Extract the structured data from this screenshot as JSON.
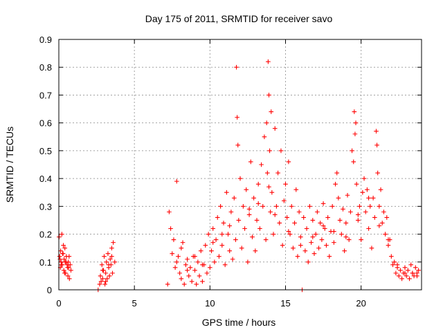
{
  "chart_data": {
    "type": "scatter",
    "title": "Day 175 of 2011, SRMTID for receiver savo",
    "xlabel": "GPS time / hours",
    "ylabel": "SRMTID / TECUs",
    "xlim": [
      0,
      24
    ],
    "ylim": [
      0,
      0.9
    ],
    "xticks": [
      0,
      5,
      10,
      15,
      20
    ],
    "yticks": [
      0,
      0.1,
      0.2,
      0.3,
      0.4,
      0.5,
      0.6,
      0.7,
      0.8,
      0.9
    ],
    "xtick_labels": [
      "0",
      "5",
      "10",
      "15",
      "20"
    ],
    "ytick_labels": [
      "0",
      "0.1",
      "0.2",
      "0.3",
      "0.4",
      "0.5",
      "0.6",
      "0.7",
      "0.8",
      "0.9"
    ],
    "grid": true,
    "marker": "+",
    "marker_color": "#ff0000",
    "series": [
      {
        "name": "SRMTID",
        "x": [
          0.02,
          0.05,
          0.1,
          0.12,
          0.15,
          0.2,
          0.22,
          0.25,
          0.3,
          0.33,
          0.35,
          0.4,
          0.42,
          0.45,
          0.5,
          0.55,
          0.6,
          0.62,
          0.65,
          0.7,
          0.75,
          0.8,
          2.6,
          2.7,
          2.75,
          2.8,
          2.85,
          2.9,
          2.95,
          3.0,
          3.05,
          3.1,
          3.15,
          3.2,
          3.25,
          3.3,
          3.35,
          3.4,
          3.45,
          3.5,
          3.55,
          3.6,
          3.7,
          7.2,
          7.3,
          7.4,
          7.5,
          7.6,
          7.7,
          7.8,
          7.9,
          8.0,
          8.1,
          8.2,
          8.3,
          8.4,
          8.5,
          8.6,
          8.7,
          8.8,
          8.9,
          9.0,
          9.1,
          9.2,
          9.3,
          9.4,
          9.5,
          9.6,
          9.7,
          9.8,
          9.9,
          10.0,
          10.1,
          10.2,
          10.3,
          10.4,
          10.5,
          10.6,
          10.7,
          10.8,
          10.9,
          11.0,
          11.1,
          11.2,
          11.3,
          11.4,
          11.5,
          11.6,
          11.7,
          11.75,
          11.8,
          11.85,
          11.9,
          12.0,
          12.1,
          12.2,
          12.3,
          12.4,
          12.5,
          12.6,
          12.7,
          12.8,
          12.9,
          13.0,
          13.1,
          13.2,
          13.3,
          13.4,
          13.5,
          13.6,
          13.7,
          13.75,
          13.8,
          13.85,
          13.9,
          13.95,
          14.0,
          14.05,
          14.1,
          14.2,
          14.3,
          14.4,
          14.5,
          14.6,
          14.7,
          14.8,
          14.9,
          15.0,
          15.1,
          15.2,
          15.3,
          15.4,
          15.5,
          15.6,
          15.7,
          15.8,
          15.9,
          16.0,
          16.1,
          16.2,
          16.3,
          16.4,
          16.5,
          16.6,
          16.7,
          16.8,
          16.9,
          17.0,
          17.1,
          17.2,
          17.3,
          17.4,
          17.5,
          17.6,
          17.7,
          17.8,
          17.9,
          18.0,
          18.1,
          18.2,
          18.3,
          18.4,
          18.5,
          18.6,
          18.7,
          18.8,
          18.9,
          19.0,
          19.1,
          19.2,
          19.3,
          19.4,
          19.5,
          19.55,
          19.6,
          19.65,
          19.7,
          19.8,
          19.9,
          20.0,
          20.1,
          20.2,
          20.3,
          20.4,
          20.5,
          20.6,
          20.7,
          20.8,
          20.9,
          21.0,
          21.05,
          21.1,
          21.2,
          21.3,
          21.4,
          21.5,
          21.6,
          21.7,
          21.8,
          21.9,
          22.0,
          22.1,
          22.2,
          22.3,
          22.4,
          22.5,
          22.6,
          22.7,
          22.8,
          22.9,
          23.0,
          23.1,
          23.2,
          23.3,
          23.4,
          23.5,
          23.6,
          23.7,
          23.8,
          0.08,
          0.18,
          0.28,
          0.38,
          0.48,
          0.58,
          0.68,
          2.9,
          3.1,
          3.3,
          3.5,
          7.8,
          8.1,
          8.5,
          9.0,
          9.5,
          10.2,
          10.8,
          11.3,
          12.6,
          13.2,
          13.9,
          14.3,
          15.2,
          16.0,
          16.8,
          17.5,
          18.2,
          19.0,
          19.8,
          20.5,
          21.2,
          21.8,
          22.4,
          22.9,
          23.4,
          23.7
        ],
        "y": [
          0.19,
          0.12,
          0.08,
          0.14,
          0.1,
          0.2,
          0.09,
          0.13,
          0.16,
          0.07,
          0.11,
          0.15,
          0.1,
          0.06,
          0.12,
          0.09,
          0.05,
          0.1,
          0.08,
          0.04,
          0.09,
          0.07,
          0.0,
          0.02,
          0.05,
          0.03,
          0.09,
          0.04,
          0.07,
          0.12,
          0.02,
          0.06,
          0.1,
          0.04,
          0.13,
          0.08,
          0.05,
          0.11,
          0.09,
          0.15,
          0.06,
          0.17,
          0.1,
          0.02,
          0.28,
          0.22,
          0.13,
          0.18,
          0.08,
          0.39,
          0.12,
          0.06,
          0.04,
          0.17,
          0.02,
          0.09,
          0.11,
          0.05,
          0.08,
          0.03,
          0.12,
          0.07,
          0.02,
          0.1,
          0.05,
          0.14,
          0.03,
          0.09,
          0.16,
          0.06,
          0.2,
          0.08,
          0.14,
          0.22,
          0.1,
          0.18,
          0.26,
          0.12,
          0.3,
          0.16,
          0.24,
          0.09,
          0.35,
          0.2,
          0.14,
          0.28,
          0.11,
          0.33,
          0.18,
          0.8,
          0.62,
          0.52,
          0.25,
          0.4,
          0.15,
          0.3,
          0.22,
          0.36,
          0.1,
          0.27,
          0.46,
          0.19,
          0.33,
          0.14,
          0.25,
          0.38,
          0.22,
          0.45,
          0.3,
          0.55,
          0.18,
          0.6,
          0.42,
          0.82,
          0.7,
          0.5,
          0.28,
          0.64,
          0.35,
          0.2,
          0.58,
          0.3,
          0.42,
          0.24,
          0.5,
          0.16,
          0.32,
          0.38,
          0.26,
          0.46,
          0.2,
          0.3,
          0.15,
          0.24,
          0.36,
          0.12,
          0.28,
          0.19,
          0.0,
          0.26,
          0.14,
          0.22,
          0.1,
          0.3,
          0.17,
          0.25,
          0.13,
          0.2,
          0.28,
          0.15,
          0.24,
          0.18,
          0.31,
          0.22,
          0.16,
          0.26,
          0.12,
          0.21,
          0.3,
          0.17,
          0.38,
          0.42,
          0.33,
          0.25,
          0.2,
          0.29,
          0.14,
          0.24,
          0.34,
          0.18,
          0.28,
          0.5,
          0.46,
          0.64,
          0.56,
          0.6,
          0.38,
          0.25,
          0.3,
          0.18,
          0.35,
          0.4,
          0.28,
          0.36,
          0.22,
          0.3,
          0.15,
          0.33,
          0.26,
          0.57,
          0.52,
          0.42,
          0.3,
          0.36,
          0.24,
          0.28,
          0.2,
          0.26,
          0.16,
          0.18,
          0.12,
          0.09,
          0.1,
          0.06,
          0.08,
          0.05,
          0.07,
          0.04,
          0.06,
          0.08,
          0.05,
          0.07,
          0.04,
          0.09,
          0.06,
          0.05,
          0.08,
          0.06,
          0.07,
          0.11,
          0.09,
          0.13,
          0.06,
          0.1,
          0.08,
          0.12,
          0.07,
          0.03,
          0.09,
          0.12,
          0.1,
          0.15,
          0.07,
          0.12,
          0.09,
          0.17,
          0.2,
          0.23,
          0.29,
          0.31,
          0.37,
          0.27,
          0.21,
          0.16,
          0.19,
          0.23,
          0.21,
          0.19,
          0.27,
          0.33,
          0.23,
          0.18,
          0.09,
          0.06,
          0.06,
          0.05
        ]
      }
    ]
  }
}
